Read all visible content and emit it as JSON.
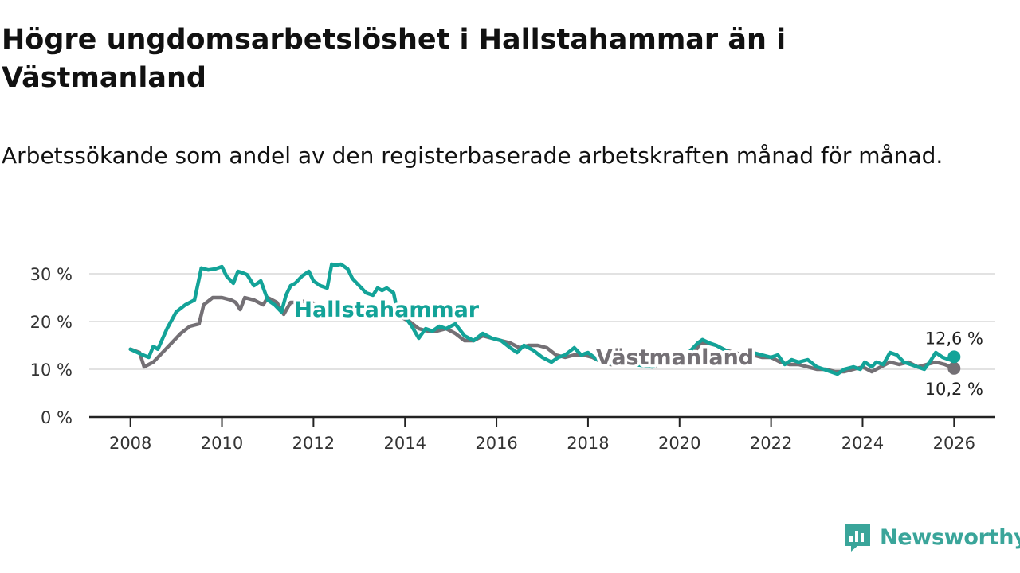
{
  "title": "Högre ungdomsarbetslöshet i Hallstahammar än i Västmanland",
  "subtitle": "Arbetssökande som andel av den registerbaserade arbetskraften månad för månad.",
  "brand": "Newsworthy",
  "colors": {
    "hallstahammar": "#13a398",
    "vastmanland": "#747075",
    "grid": "#d9d9d9",
    "axis": "#222222",
    "brand": "#3aa59a"
  },
  "chart_data": {
    "type": "line",
    "title": "Högre ungdomsarbetslöshet i Hallstahammar än i Västmanland",
    "xlabel": "",
    "ylabel": "",
    "xlim": [
      2007.1,
      2026.9
    ],
    "ylim": [
      0,
      30
    ],
    "x_ticks": [
      2008,
      2010,
      2012,
      2014,
      2016,
      2018,
      2020,
      2022,
      2024,
      2026
    ],
    "y_ticks": [
      0,
      10,
      20,
      30
    ],
    "y_tick_labels": [
      "0 %",
      "10 %",
      "20 %",
      "30 %"
    ],
    "grid": "horizontal",
    "series": [
      {
        "name": "Hallstahammar",
        "color": "#13a398",
        "label_x": 2013.6,
        "label_y": 22.5,
        "x": [
          2008.0,
          2008.25,
          2008.4,
          2008.5,
          2008.6,
          2008.8,
          2009.0,
          2009.2,
          2009.4,
          2009.55,
          2009.7,
          2009.85,
          2010.0,
          2010.1,
          2010.25,
          2010.35,
          2010.45,
          2010.55,
          2010.7,
          2010.85,
          2011.0,
          2011.15,
          2011.3,
          2011.4,
          2011.5,
          2011.6,
          2011.75,
          2011.9,
          2012.0,
          2012.15,
          2012.3,
          2012.4,
          2012.5,
          2012.6,
          2012.75,
          2012.85,
          2013.0,
          2013.15,
          2013.3,
          2013.4,
          2013.5,
          2013.6,
          2013.75,
          2013.85,
          2014.0,
          2014.15,
          2014.3,
          2014.45,
          2014.6,
          2014.75,
          2014.9,
          2015.1,
          2015.3,
          2015.5,
          2015.7,
          2015.9,
          2016.1,
          2016.3,
          2016.45,
          2016.6,
          2016.8,
          2017.0,
          2017.2,
          2017.35,
          2017.5,
          2017.7,
          2017.85,
          2018.0,
          2018.2,
          2018.4,
          2018.6,
          2018.8,
          2019.0,
          2019.2,
          2019.4,
          2019.6,
          2019.8,
          2020.0,
          2020.2,
          2020.4,
          2020.5,
          2020.65,
          2020.8,
          2021.0,
          2021.2,
          2021.4,
          2021.6,
          2021.8,
          2022.0,
          2022.15,
          2022.3,
          2022.45,
          2022.6,
          2022.8,
          2023.0,
          2023.15,
          2023.3,
          2023.45,
          2023.6,
          2023.8,
          2023.95,
          2024.05,
          2024.2,
          2024.3,
          2024.45,
          2024.6,
          2024.75,
          2024.9,
          2025.05,
          2025.2,
          2025.35,
          2025.5,
          2025.6,
          2025.75,
          2025.9,
          2026.0
        ],
        "values": [
          14.2,
          13.1,
          12.5,
          14.8,
          14.2,
          18.5,
          22.0,
          23.5,
          24.5,
          31.2,
          30.8,
          31.0,
          31.5,
          29.5,
          28.0,
          30.5,
          30.2,
          29.8,
          27.5,
          28.5,
          24.5,
          23.5,
          22.0,
          25.5,
          27.5,
          28.0,
          29.5,
          30.5,
          28.5,
          27.5,
          27.0,
          32.0,
          31.8,
          32.0,
          31.0,
          29.0,
          27.5,
          26.0,
          25.5,
          27.0,
          26.5,
          27.0,
          26.0,
          21.5,
          21.0,
          19.0,
          16.5,
          18.5,
          18.0,
          19.0,
          18.5,
          19.5,
          17.0,
          16.0,
          17.5,
          16.5,
          16.0,
          14.5,
          13.5,
          15.0,
          14.0,
          12.5,
          11.5,
          12.5,
          13.0,
          14.5,
          13.0,
          13.5,
          12.0,
          11.5,
          11.0,
          11.5,
          11.0,
          10.8,
          10.5,
          11.5,
          12.5,
          13.0,
          13.5,
          15.5,
          16.2,
          15.5,
          15.0,
          14.0,
          13.0,
          13.0,
          13.5,
          13.0,
          12.5,
          13.0,
          11.0,
          12.0,
          11.5,
          12.0,
          10.5,
          10.0,
          9.5,
          9.0,
          10.0,
          10.5,
          10.0,
          11.5,
          10.5,
          11.5,
          11.0,
          13.5,
          13.0,
          11.5,
          11.0,
          10.5,
          10.0,
          12.0,
          13.5,
          12.5,
          12.0,
          12.6
        ],
        "end_label": "12,6 %"
      },
      {
        "name": "Västmanland",
        "color": "#747075",
        "label_x": 2019.9,
        "label_y": 12.5,
        "x": [
          2008.0,
          2008.2,
          2008.3,
          2008.5,
          2008.7,
          2008.9,
          2009.1,
          2009.3,
          2009.5,
          2009.6,
          2009.8,
          2010.0,
          2010.2,
          2010.3,
          2010.4,
          2010.5,
          2010.7,
          2010.9,
          2011.0,
          2011.2,
          2011.35,
          2011.5,
          2011.7,
          2011.9,
          2012.1,
          2012.3,
          2012.5,
          2012.7,
          2012.9,
          2013.1,
          2013.3,
          2013.5,
          2013.7,
          2013.9,
          2014.1,
          2014.3,
          2014.5,
          2014.7,
          2014.9,
          2015.1,
          2015.3,
          2015.5,
          2015.7,
          2015.9,
          2016.1,
          2016.3,
          2016.5,
          2016.7,
          2016.9,
          2017.1,
          2017.3,
          2017.5,
          2017.7,
          2017.9,
          2018.1,
          2018.3,
          2018.5,
          2018.7,
          2018.9,
          2019.1,
          2019.3,
          2019.5,
          2019.7,
          2019.9,
          2020.1,
          2020.3,
          2020.45,
          2020.6,
          2020.8,
          2021.0,
          2021.2,
          2021.4,
          2021.6,
          2021.8,
          2022.0,
          2022.2,
          2022.4,
          2022.6,
          2022.8,
          2023.0,
          2023.2,
          2023.4,
          2023.6,
          2023.8,
          2024.0,
          2024.2,
          2024.4,
          2024.6,
          2024.8,
          2025.0,
          2025.2,
          2025.4,
          2025.6,
          2025.8,
          2026.0
        ],
        "values": [
          14.2,
          13.5,
          10.5,
          11.5,
          13.5,
          15.5,
          17.5,
          19.0,
          19.5,
          23.5,
          25.0,
          25.0,
          24.5,
          24.0,
          22.5,
          25.0,
          24.5,
          23.5,
          25.0,
          24.0,
          21.5,
          24.0,
          24.0,
          24.5,
          23.0,
          22.5,
          22.0,
          22.5,
          22.0,
          22.5,
          21.5,
          21.5,
          21.5,
          21.0,
          20.0,
          18.5,
          18.0,
          18.0,
          18.5,
          17.5,
          16.0,
          16.0,
          17.0,
          16.5,
          16.0,
          15.5,
          14.5,
          15.0,
          15.0,
          14.5,
          13.0,
          12.5,
          13.0,
          13.0,
          12.5,
          11.5,
          11.0,
          11.0,
          11.0,
          11.0,
          11.0,
          10.8,
          11.0,
          11.5,
          12.0,
          13.0,
          15.5,
          15.5,
          15.0,
          14.0,
          13.5,
          13.0,
          13.0,
          12.5,
          12.5,
          11.5,
          11.0,
          11.0,
          10.5,
          10.0,
          10.0,
          9.5,
          9.5,
          10.0,
          10.5,
          9.5,
          10.5,
          11.5,
          11.0,
          11.5,
          10.5,
          11.0,
          11.5,
          11.0,
          10.2
        ],
        "end_label": "10,2 %"
      }
    ]
  }
}
